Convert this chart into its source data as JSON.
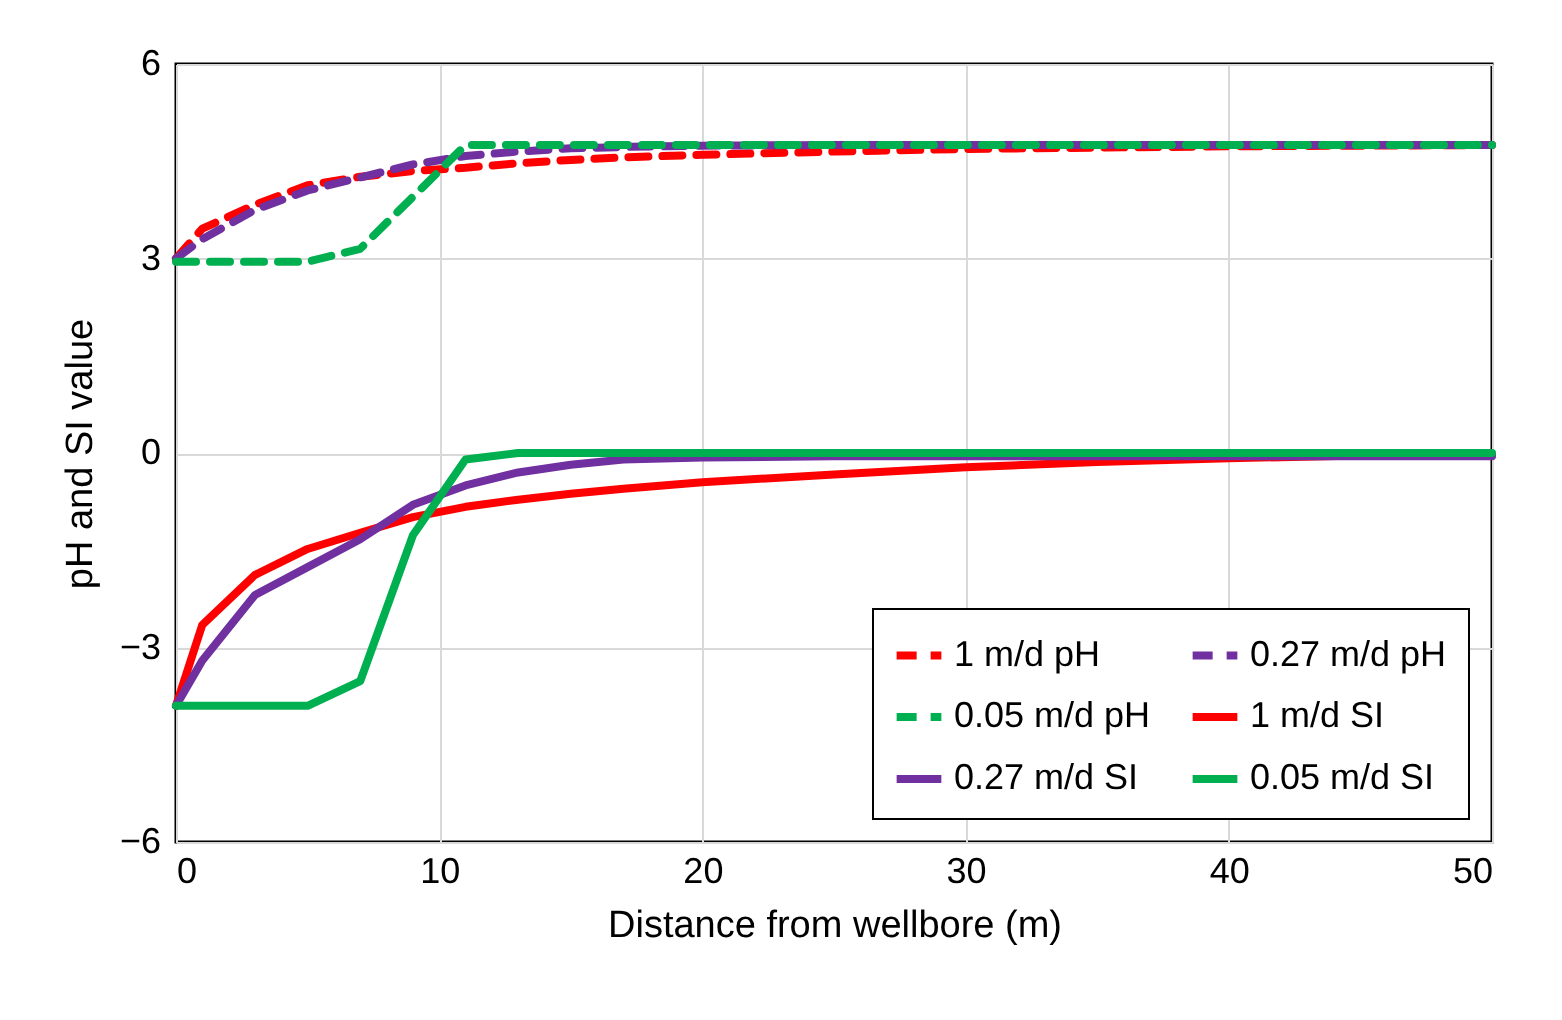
{
  "chart_data": {
    "type": "line",
    "xlabel": "Distance from wellbore (m)",
    "ylabel": "pH and SI value",
    "x": [
      0,
      1,
      3,
      5,
      7,
      9,
      11,
      13,
      15,
      17,
      20,
      25,
      30,
      35,
      40,
      45,
      50
    ],
    "xlim": [
      0,
      50
    ],
    "xticks": [
      0,
      10,
      20,
      30,
      40,
      50
    ],
    "ylim": [
      -6,
      6
    ],
    "yticks": [
      -6,
      -3,
      0,
      3,
      6
    ],
    "grid": true,
    "legend": "bottom right",
    "marker": "none",
    "series": [
      {
        "name": "1 m/d pH",
        "color": "#ff0000",
        "line_style": "dashed",
        "values": [
          3,
          3.46,
          3.83,
          4.13,
          4.26,
          4.35,
          4.4,
          4.47,
          4.52,
          4.56,
          4.6,
          4.65,
          4.69,
          4.71,
          4.73,
          4.74,
          4.75
        ]
      },
      {
        "name": "0.27 m/d pH",
        "color": "#7030a0",
        "line_style": "dashed",
        "values": [
          3,
          3.3,
          3.75,
          4.05,
          4.25,
          4.45,
          4.58,
          4.65,
          4.7,
          4.72,
          4.74,
          4.75,
          4.75,
          4.75,
          4.75,
          4.75,
          4.75
        ]
      },
      {
        "name": "0.05 m/d pH",
        "color": "#00b050",
        "line_style": "dashed",
        "values": [
          2.95,
          2.95,
          2.95,
          2.95,
          3.15,
          3.95,
          4.75,
          4.75,
          4.75,
          4.75,
          4.75,
          4.75,
          4.75,
          4.75,
          4.75,
          4.75,
          4.75
        ]
      },
      {
        "name": "1 m/d SI",
        "color": "#ff0000",
        "line_style": "solid",
        "values": [
          -3.9,
          -2.65,
          -1.88,
          -1.48,
          -1.23,
          -0.99,
          -0.83,
          -0.72,
          -0.63,
          -0.55,
          -0.45,
          -0.33,
          -0.22,
          -0.14,
          -0.08,
          -0.04,
          -0.02
        ]
      },
      {
        "name": "0.27 m/d SI",
        "color": "#7030a0",
        "line_style": "solid",
        "values": [
          -3.9,
          -3.2,
          -2.19,
          -1.76,
          -1.33,
          -0.8,
          -0.5,
          -0.3,
          -0.18,
          -0.1,
          -0.07,
          -0.05,
          -0.05,
          -0.05,
          -0.05,
          -0.05,
          -0.05
        ]
      },
      {
        "name": "0.05 m/d SI",
        "color": "#00b050",
        "line_style": "solid",
        "values": [
          -3.9,
          -3.9,
          -3.9,
          -3.9,
          -3.52,
          -1.27,
          -0.1,
          0,
          0,
          0,
          0,
          0,
          0,
          0,
          0,
          0,
          0
        ]
      }
    ]
  }
}
